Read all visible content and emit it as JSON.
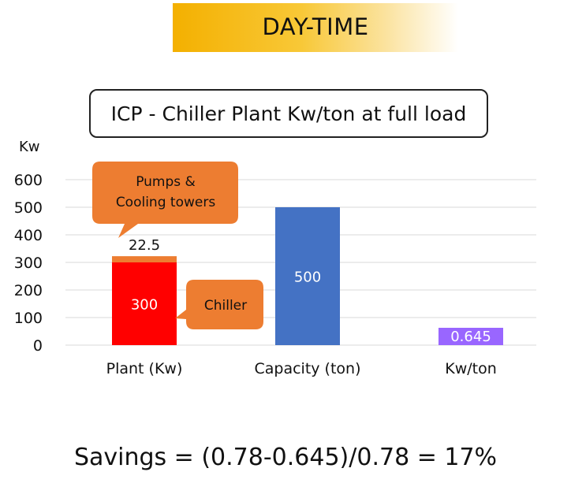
{
  "banner": {
    "title": "DAY-TIME"
  },
  "chart_data": {
    "type": "bar",
    "title": "ICP - Chiller Plant Kw/ton at full load",
    "ylabel": "Kw",
    "ylim": [
      0,
      600
    ],
    "yticks": [
      0,
      100,
      200,
      300,
      400,
      500,
      600
    ],
    "categories": [
      "Plant (Kw)",
      "Capacity (ton)",
      "Kw/ton"
    ],
    "stacked": true,
    "series": [
      {
        "name": "Chiller",
        "values": [
          300,
          null,
          null
        ],
        "labels": [
          "300",
          "",
          ""
        ],
        "color": "#ff0000"
      },
      {
        "name": "Pumps & Cooling towers",
        "values": [
          22.5,
          null,
          null
        ],
        "labels": [
          "22.5",
          "",
          ""
        ],
        "color": "#ed7d31"
      },
      {
        "values": [
          null,
          500,
          null
        ],
        "labels": [
          "",
          "500",
          ""
        ],
        "color": "#4472c4"
      },
      {
        "values": [
          null,
          null,
          0.645
        ],
        "labels": [
          "",
          "",
          "0.645"
        ],
        "color": "#9966ff"
      }
    ],
    "grid": true,
    "annotations": [
      {
        "text_lines": [
          "Pumps &",
          "Cooling towers"
        ],
        "target_category": "Plant (Kw)",
        "target_value": 322.5,
        "color": "#ed7d31"
      },
      {
        "text_lines": [
          "Chiller"
        ],
        "target_category": "Plant (Kw)",
        "target_value": 150,
        "color": "#ed7d31"
      }
    ]
  },
  "footer": {
    "savings": "Savings = (0.78-0.645)/0.78 = 17%"
  }
}
